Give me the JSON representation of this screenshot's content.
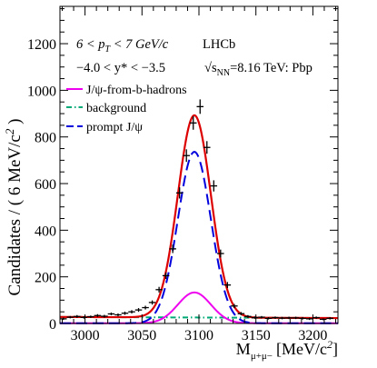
{
  "chart_data": {
    "type": "line",
    "title": "",
    "xlabel": "M",
    "xlabel_sub": "μ+μ−",
    "xlabel_unit": "[MeV/c",
    "xlabel_unit_sup": "2",
    "xlabel_unit_end": "]",
    "ylabel": "Candidates / ( 6 MeV/c",
    "ylabel_sup": "2",
    "ylabel_end": " )",
    "xlim": [
      2978,
      3222
    ],
    "ylim": [
      0,
      1360
    ],
    "xticks": [
      3000,
      3050,
      3100,
      3150,
      3200
    ],
    "yticks": [
      0,
      200,
      400,
      600,
      800,
      1000,
      1200
    ],
    "annotations": {
      "pt_prefix": "6 < p",
      "pt_sub": "T",
      "pt_suffix": " < 7 GeV/c",
      "y_range": "−4.0 < y* < −3.5",
      "experiment": "LHCb",
      "energy_prefix": "√s",
      "energy_sub": "NN",
      "energy_suffix": "=8.16 TeV: Pbp"
    },
    "legend_position": "top-left",
    "series": [
      {
        "name": "J/ψ-from-b-hadrons",
        "color": "#ee00ee",
        "style": "solid",
        "role": "from_b"
      },
      {
        "name": "background",
        "color": "#00aa77",
        "style": "dashdot",
        "role": "background"
      },
      {
        "name": "prompt J/ψ",
        "color": "#0000dd",
        "style": "dashed",
        "role": "prompt"
      },
      {
        "name": "",
        "color": "#dd0000",
        "style": "solid",
        "role": "total"
      }
    ],
    "model": {
      "mean": 3096,
      "sigma": 14.5,
      "prompt_peak": 735,
      "fromb_peak": 132,
      "bkg_level": 28,
      "bkg_slope": -0.02
    },
    "points": [
      {
        "x": 2981,
        "y": 20,
        "err": 5
      },
      {
        "x": 2987,
        "y": 27,
        "err": 5
      },
      {
        "x": 2993,
        "y": 30,
        "err": 6
      },
      {
        "x": 2999,
        "y": 26,
        "err": 5
      },
      {
        "x": 3005,
        "y": 29,
        "err": 5
      },
      {
        "x": 3011,
        "y": 34,
        "err": 6
      },
      {
        "x": 3017,
        "y": 31,
        "err": 6
      },
      {
        "x": 3023,
        "y": 41,
        "err": 6
      },
      {
        "x": 3029,
        "y": 37,
        "err": 6
      },
      {
        "x": 3035,
        "y": 44,
        "err": 7
      },
      {
        "x": 3041,
        "y": 50,
        "err": 7
      },
      {
        "x": 3047,
        "y": 58,
        "err": 8
      },
      {
        "x": 3053,
        "y": 68,
        "err": 8
      },
      {
        "x": 3059,
        "y": 90,
        "err": 9
      },
      {
        "x": 3065,
        "y": 145,
        "err": 12
      },
      {
        "x": 3071,
        "y": 205,
        "err": 14
      },
      {
        "x": 3077,
        "y": 320,
        "err": 18
      },
      {
        "x": 3083,
        "y": 560,
        "err": 24
      },
      {
        "x": 3089,
        "y": 720,
        "err": 27
      },
      {
        "x": 3095,
        "y": 860,
        "err": 29
      },
      {
        "x": 3101,
        "y": 930,
        "err": 31
      },
      {
        "x": 3107,
        "y": 755,
        "err": 27
      },
      {
        "x": 3113,
        "y": 590,
        "err": 24
      },
      {
        "x": 3119,
        "y": 300,
        "err": 17
      },
      {
        "x": 3125,
        "y": 165,
        "err": 13
      },
      {
        "x": 3131,
        "y": 75,
        "err": 9
      },
      {
        "x": 3137,
        "y": 42,
        "err": 7
      },
      {
        "x": 3143,
        "y": 30,
        "err": 6
      },
      {
        "x": 3149,
        "y": 25,
        "err": 5
      },
      {
        "x": 3155,
        "y": 27,
        "err": 5
      },
      {
        "x": 3161,
        "y": 22,
        "err": 5
      },
      {
        "x": 3167,
        "y": 25,
        "err": 5
      },
      {
        "x": 3173,
        "y": 23,
        "err": 5
      },
      {
        "x": 3179,
        "y": 24,
        "err": 5
      },
      {
        "x": 3185,
        "y": 24,
        "err": 5
      },
      {
        "x": 3191,
        "y": 22,
        "err": 5
      },
      {
        "x": 3197,
        "y": 20,
        "err": 5
      },
      {
        "x": 3203,
        "y": 25,
        "err": 5
      },
      {
        "x": 3209,
        "y": 18,
        "err": 4
      },
      {
        "x": 3215,
        "y": 22,
        "err": 5
      }
    ]
  }
}
